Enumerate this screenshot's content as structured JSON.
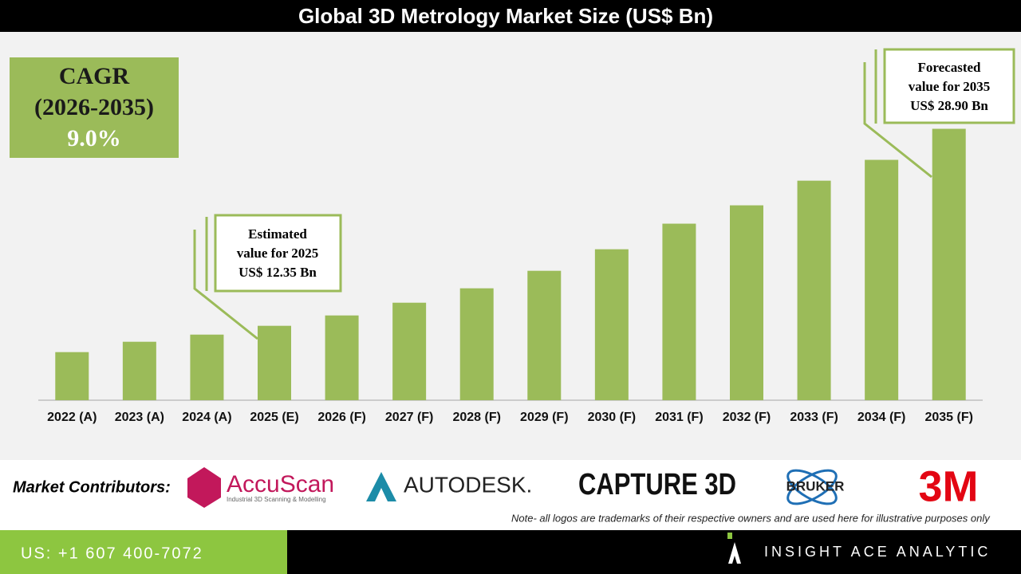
{
  "chart_data": {
    "type": "bar",
    "title": "Global 3D Metrology Market Size (US$ Bn)",
    "categories": [
      "2022 (A)",
      "2023 (A)",
      "2024 (A)",
      "2025 (E)",
      "2026 (F)",
      "2027 (F)",
      "2028 (F)",
      "2029 (F)",
      "2030 (F)",
      "2031 (F)",
      "2032 (F)",
      "2033 (F)",
      "2034 (F)",
      "2035 (F)"
    ],
    "values": [
      10.14,
      11.01,
      11.61,
      12.35,
      13.22,
      14.29,
      15.5,
      16.97,
      18.78,
      20.93,
      22.47,
      24.54,
      26.29,
      28.9
    ],
    "color": "#9bbb59",
    "ylim": [
      6.1,
      35.7
    ],
    "annotations": [
      {
        "lines": [
          "Estimated",
          "value for 2025",
          "US$ 12.35 Bn"
        ]
      },
      {
        "lines": [
          "Forecasted",
          "value for 2035",
          "US$ 28.90 Bn"
        ]
      }
    ]
  },
  "cagr": {
    "lines": [
      "CAGR",
      "(2026-2035)",
      "9.0%"
    ]
  },
  "contributors": {
    "label": "Market Contributors:",
    "logos": [
      "AccuScan",
      "Industrial 3D Scanning & Modelling",
      "AUTODESK.",
      "CAPTURE 3D",
      "BRUKER",
      "3M"
    ],
    "note": "Note- all logos are trademarks of their respective owners and are used here for illustrative purposes only"
  },
  "footer": {
    "phone": "US: +1 607 400-7072",
    "brand": "INSIGHT ACE ANALYTIC"
  }
}
